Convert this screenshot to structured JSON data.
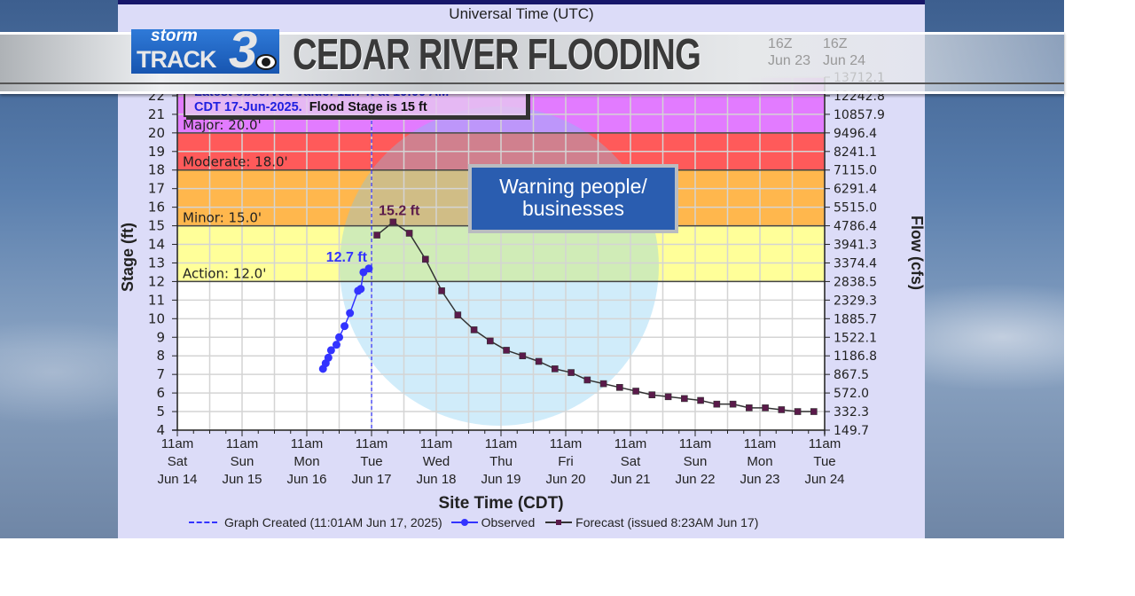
{
  "banner": {
    "logo_text_1": "storm",
    "logo_text_2": "TRACK",
    "logo_text_3": "3",
    "title": "CEDAR RIVER FLOODING"
  },
  "callout": {
    "text_line1": "Warning people/",
    "text_line2": "businesses"
  },
  "info_box": {
    "line1": "Latest observed value: 12.7 ft at 10:00 AM",
    "line2_blue": "CDT 17-Jun-2025.",
    "line2_black": "Flood Stage is 15 ft"
  },
  "chart_data": {
    "type": "line",
    "top_axis_title": "Universal Time (UTC)",
    "top_tick_labels_visible": [
      [
        "16Z",
        "Jun 23"
      ],
      [
        "16Z",
        "Jun 24"
      ]
    ],
    "xlabel": "Site Time (CDT)",
    "ylabel": "Stage (ft)",
    "y2label": "Flow (cfs)",
    "ylim": [
      4,
      23
    ],
    "y_ticks": [
      4,
      5,
      6,
      7,
      8,
      9,
      10,
      11,
      12,
      13,
      14,
      15,
      16,
      17,
      18,
      19,
      20,
      21,
      22
    ],
    "y2_tick_labels": [
      "149.7",
      "332.3",
      "572.0",
      "867.5",
      "1186.8",
      "1522.1",
      "1885.7",
      "2329.3",
      "2838.5",
      "3374.4",
      "3941.3",
      "4786.4",
      "5515.0",
      "6291.4",
      "7115.0",
      "8241.1",
      "9496.4",
      "10857.9",
      "12242.8",
      "13712.1"
    ],
    "x_tick_labels": [
      [
        "11am",
        "Sat",
        "Jun 14"
      ],
      [
        "11am",
        "Sun",
        "Jun 15"
      ],
      [
        "11am",
        "Mon",
        "Jun 16"
      ],
      [
        "11am",
        "Tue",
        "Jun 17"
      ],
      [
        "11am",
        "Wed",
        "Jun 18"
      ],
      [
        "11am",
        "Thu",
        "Jun 19"
      ],
      [
        "11am",
        "Fri",
        "Jun 20"
      ],
      [
        "11am",
        "Sat",
        "Jun 21"
      ],
      [
        "11am",
        "Sun",
        "Jun 22"
      ],
      [
        "11am",
        "Mon",
        "Jun 23"
      ],
      [
        "11am",
        "Tue",
        "Jun 24"
      ]
    ],
    "xlim": [
      "2025-06-14T11:00",
      "2025-06-24T11:00"
    ],
    "grid": true,
    "flood_categories": [
      {
        "name": "Action: 12.0'",
        "stage": 12,
        "color": "#ffff99"
      },
      {
        "name": "Minor: 15.0'",
        "stage": 15,
        "color": "#ffb74d"
      },
      {
        "name": "Moderate: 18.0'",
        "stage": 18,
        "color": "#ff5a5a"
      },
      {
        "name": "Major: 20.0'",
        "stage": 20,
        "color": "#e27bff"
      }
    ],
    "graph_created": "2025-06-17T11:01",
    "series": [
      {
        "name": "Observed",
        "color": "#3333ff",
        "marker": "circle",
        "points": [
          [
            "2025-06-16T17:00",
            7.3
          ],
          [
            "2025-06-16T18:00",
            7.6
          ],
          [
            "2025-06-16T19:00",
            7.9
          ],
          [
            "2025-06-16T20:00",
            8.3
          ],
          [
            "2025-06-16T22:00",
            8.6
          ],
          [
            "2025-06-16T23:00",
            9.0
          ],
          [
            "2025-06-17T01:00",
            9.6
          ],
          [
            "2025-06-17T03:00",
            10.3
          ],
          [
            "2025-06-17T06:00",
            11.5
          ],
          [
            "2025-06-17T07:00",
            11.6
          ],
          [
            "2025-06-17T08:00",
            12.5
          ],
          [
            "2025-06-17T10:00",
            12.7
          ]
        ],
        "label": "12.7 ft"
      },
      {
        "name": "Forecast (issued 8:23AM Jun 17)",
        "color": "#5a1a4a",
        "marker": "square",
        "points": [
          [
            "2025-06-17T13:00",
            14.5
          ],
          [
            "2025-06-17T19:00",
            15.2
          ],
          [
            "2025-06-18T01:00",
            14.6
          ],
          [
            "2025-06-18T07:00",
            13.2
          ],
          [
            "2025-06-18T13:00",
            11.5
          ],
          [
            "2025-06-18T19:00",
            10.2
          ],
          [
            "2025-06-19T01:00",
            9.4
          ],
          [
            "2025-06-19T07:00",
            8.8
          ],
          [
            "2025-06-19T13:00",
            8.3
          ],
          [
            "2025-06-19T19:00",
            8.0
          ],
          [
            "2025-06-20T01:00",
            7.7
          ],
          [
            "2025-06-20T07:00",
            7.3
          ],
          [
            "2025-06-20T13:00",
            7.1
          ],
          [
            "2025-06-20T19:00",
            6.7
          ],
          [
            "2025-06-21T01:00",
            6.5
          ],
          [
            "2025-06-21T07:00",
            6.3
          ],
          [
            "2025-06-21T13:00",
            6.1
          ],
          [
            "2025-06-21T19:00",
            5.9
          ],
          [
            "2025-06-22T01:00",
            5.8
          ],
          [
            "2025-06-22T07:00",
            5.7
          ],
          [
            "2025-06-22T13:00",
            5.6
          ],
          [
            "2025-06-22T19:00",
            5.4
          ],
          [
            "2025-06-23T01:00",
            5.4
          ],
          [
            "2025-06-23T07:00",
            5.2
          ],
          [
            "2025-06-23T13:00",
            5.2
          ],
          [
            "2025-06-23T19:00",
            5.1
          ],
          [
            "2025-06-24T01:00",
            5.0
          ],
          [
            "2025-06-24T07:00",
            5.0
          ]
        ],
        "label": "15.2 ft"
      }
    ],
    "legend": {
      "graph_created": "Graph Created (11:01AM Jun 17, 2025)",
      "observed": "Observed",
      "forecast": "Forecast (issued 8:23AM Jun 17)",
      "placement": "bottom"
    }
  }
}
